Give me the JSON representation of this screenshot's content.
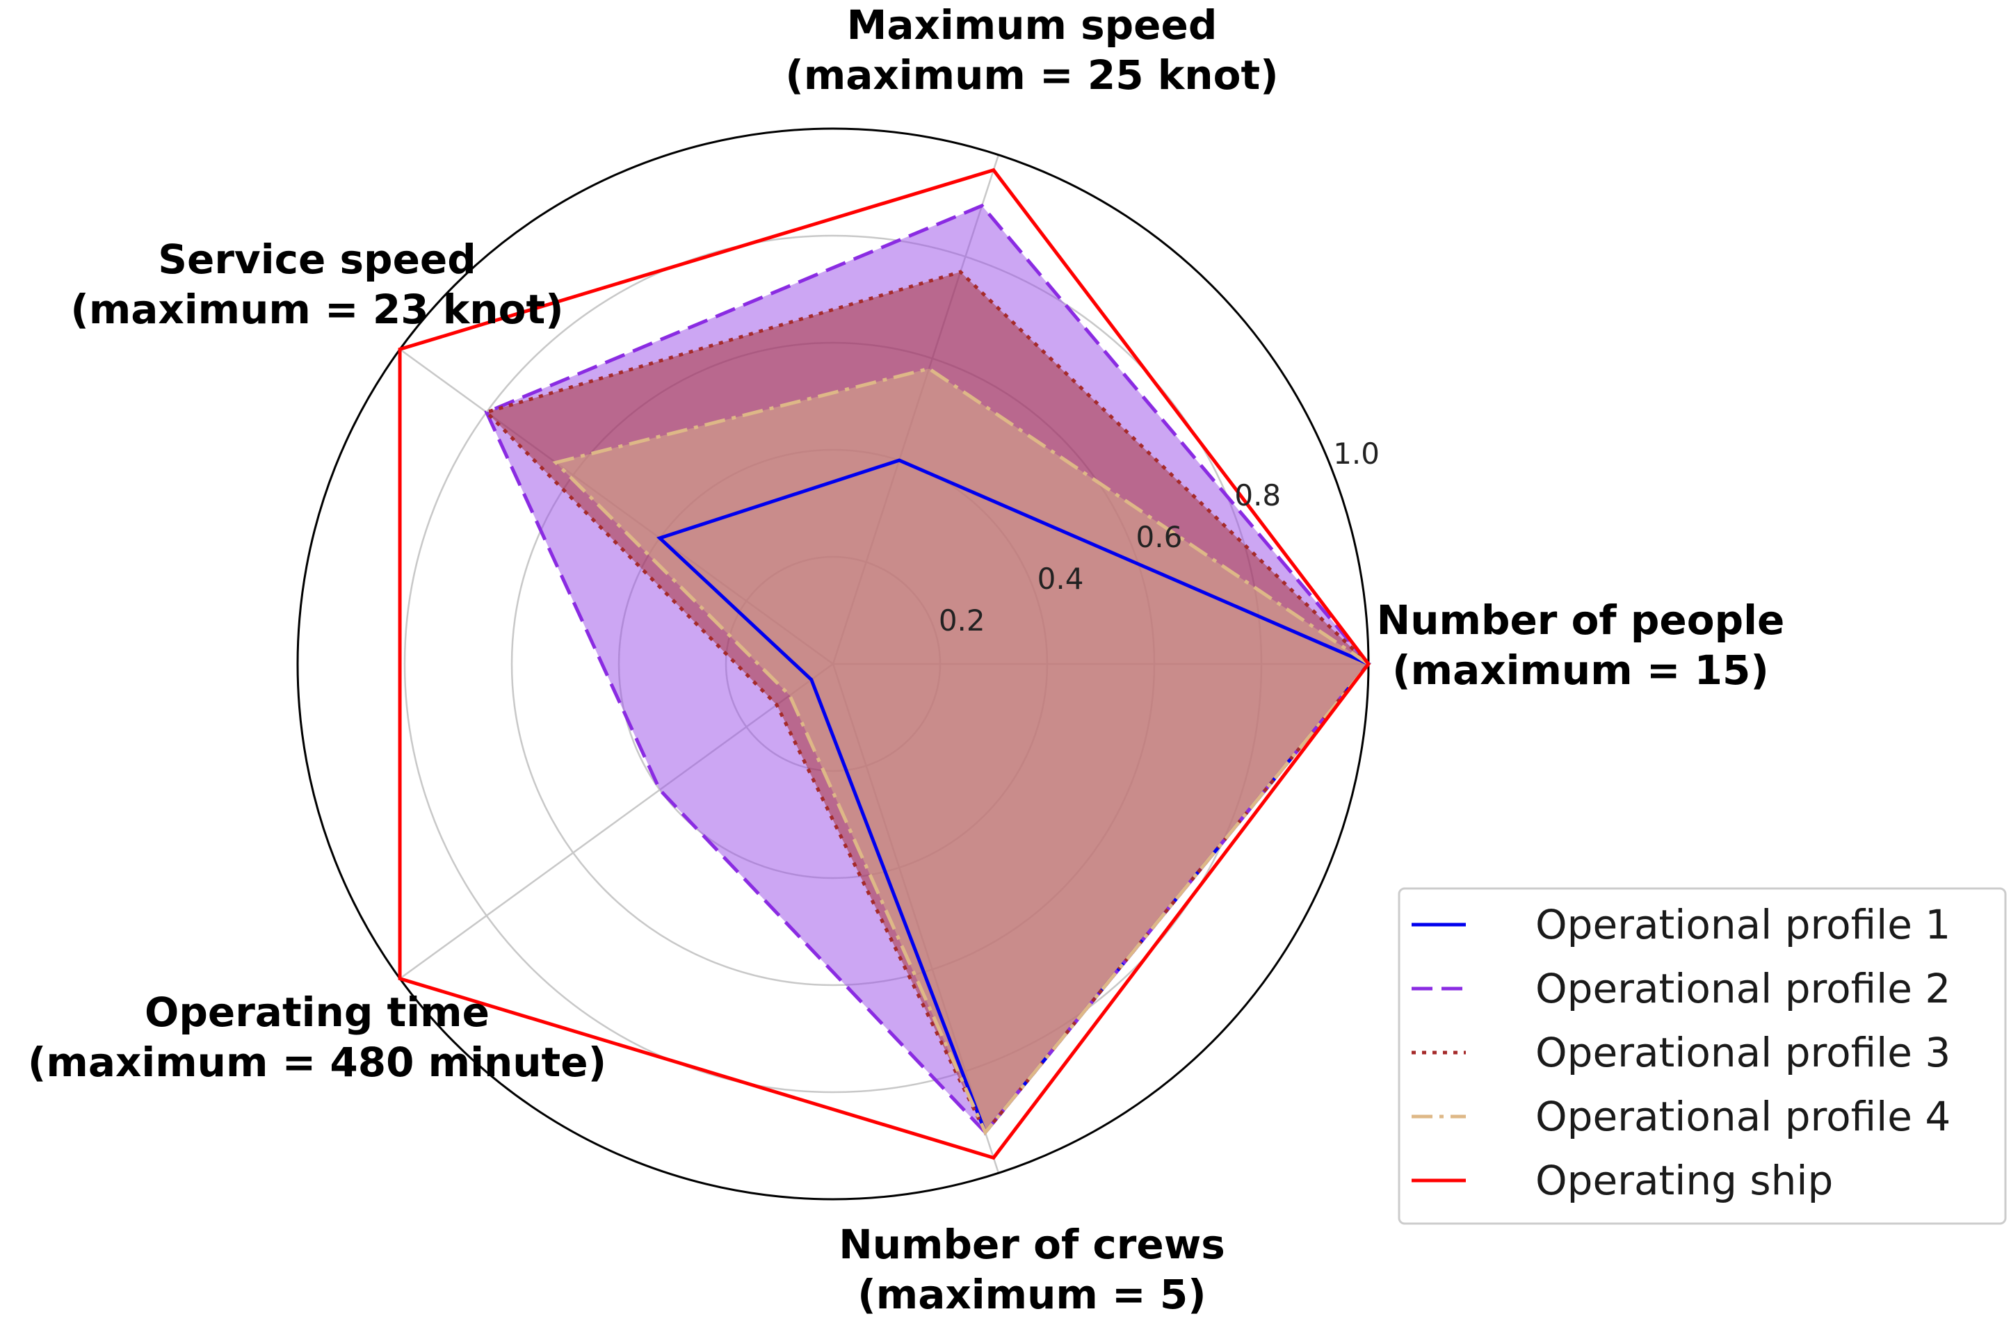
{
  "chart_data": {
    "type": "radar",
    "axes": [
      {
        "line1": "Number of people",
        "line2": "(maximum = 15)"
      },
      {
        "line1": "Maximum speed",
        "line2": "(maximum = 25 knot)"
      },
      {
        "line1": "Service speed",
        "line2": "(maximum = 23 knot)"
      },
      {
        "line1": "Operating time",
        "line2": "(maximum = 480 minute)"
      },
      {
        "line1": "Number of crews",
        "line2": "(maximum = 5)"
      }
    ],
    "rticks": [
      "0.2",
      "0.4",
      "0.6",
      "0.8",
      "1.0"
    ],
    "rlim": [
      0,
      1.0
    ],
    "grid": true,
    "legend_position": "bottom-right",
    "series": [
      {
        "name": "Operational profile 1",
        "values": [
          1.0,
          0.4,
          0.4,
          0.05,
          0.92
        ],
        "color": "#0000ee",
        "style": "solid",
        "fill": false
      },
      {
        "name": "Operational profile 2",
        "values": [
          1.0,
          0.9,
          0.8,
          0.4,
          0.92
        ],
        "color": "#8a2be2",
        "style": "dashed",
        "fill": true,
        "fill_color": "#9a4de8",
        "fill_opacity": 0.5
      },
      {
        "name": "Operational profile 3",
        "values": [
          1.0,
          0.77,
          0.8,
          0.13,
          0.92
        ],
        "color": "#a52a2a",
        "style": "dotted",
        "fill": true,
        "fill_color": "#a52a2a",
        "fill_opacity": 0.5
      },
      {
        "name": "Operational profile 4",
        "values": [
          1.0,
          0.58,
          0.64,
          0.1,
          0.92
        ],
        "color": "#deb887",
        "style": "dashdot",
        "fill": true,
        "fill_color": "#deb887",
        "fill_opacity": 0.45
      },
      {
        "name": "Operating ship",
        "values": [
          1.0,
          0.97,
          1.0,
          1.0,
          0.97
        ],
        "color": "#ff0000",
        "style": "solid",
        "fill": false
      }
    ]
  }
}
